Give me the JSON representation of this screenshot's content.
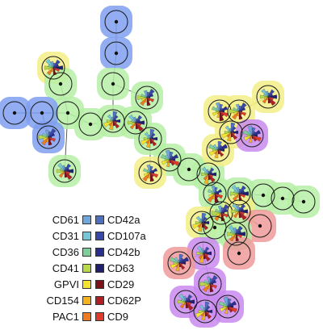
{
  "markers": [
    {
      "name": "CD61",
      "color": "#6fa8dc"
    },
    {
      "name": "CD31",
      "color": "#76c7d6"
    },
    {
      "name": "CD36",
      "color": "#7fcf9a"
    },
    {
      "name": "CD41",
      "color": "#b8d94a"
    },
    {
      "name": "GPVI",
      "color": "#f2e431"
    },
    {
      "name": "CD154",
      "color": "#f5b21f"
    },
    {
      "name": "PAC1",
      "color": "#ef7a1f"
    },
    {
      "name": "CD42a",
      "color": "#4f6fbf"
    },
    {
      "name": "CD107a",
      "color": "#3848a8"
    },
    {
      "name": "CD42b",
      "color": "#2a2f8f"
    },
    {
      "name": "CD63",
      "color": "#1f1f6e"
    },
    {
      "name": "CD29",
      "color": "#7a1218"
    },
    {
      "name": "CD62P",
      "color": "#b01f24"
    },
    {
      "name": "CD9",
      "color": "#e03a2a"
    }
  ],
  "halo_colors": {
    "blue": "#7f9ff0",
    "green": "#b6f0a6",
    "yellow": "#f3ef86",
    "red": "#ef9a9a",
    "purple": "#c98af0"
  }
}
